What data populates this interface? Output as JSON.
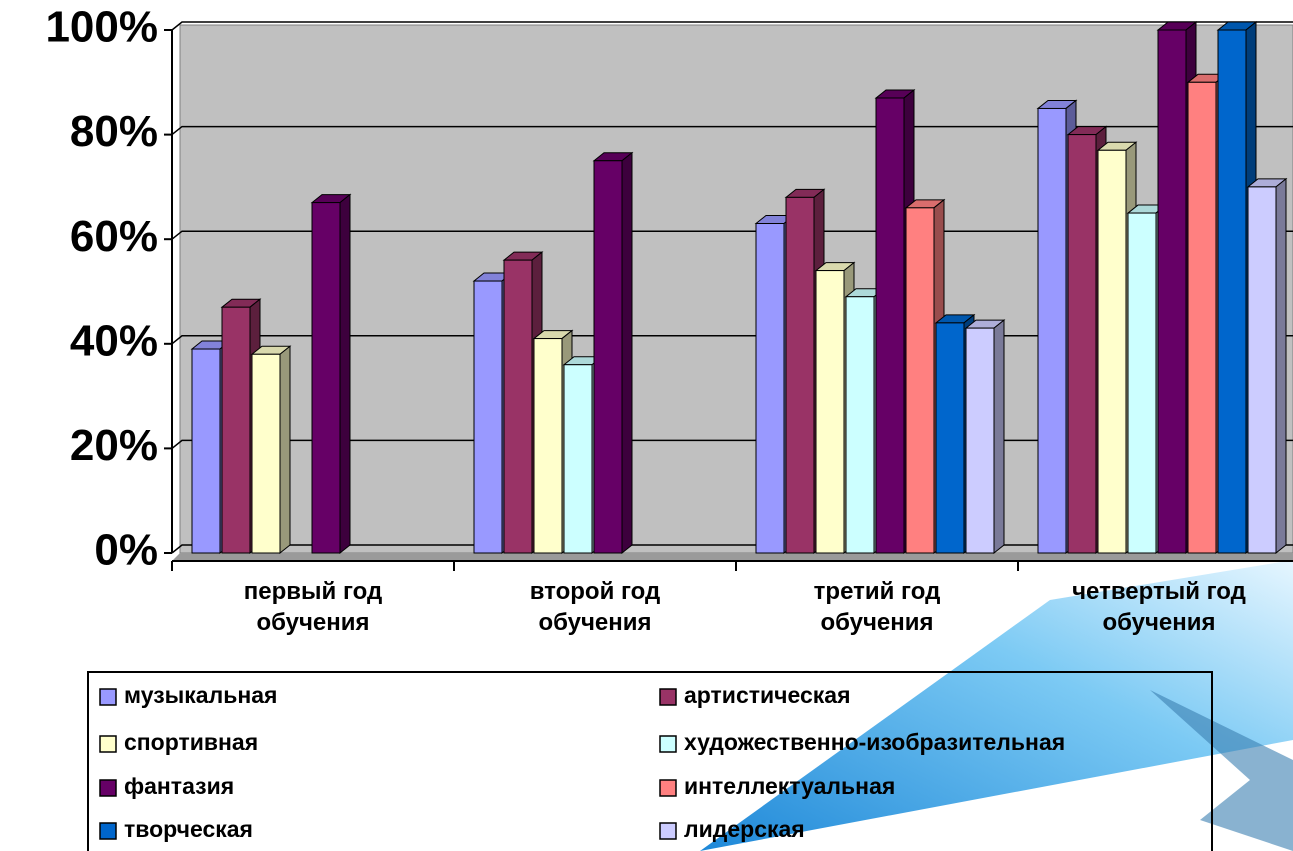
{
  "chart_data": {
    "type": "bar",
    "categories": [
      "первый год обучения",
      "второй год обучения",
      "третий год обучения",
      "четвертый год обучения"
    ],
    "series": [
      {
        "name": "музыкальная",
        "color": "#9999ff",
        "values": [
          39,
          52,
          63,
          85
        ]
      },
      {
        "name": "артистическая",
        "color": "#993366",
        "values": [
          47,
          56,
          68,
          80
        ]
      },
      {
        "name": "спортивная",
        "color": "#ffffcc",
        "values": [
          38,
          41,
          54,
          77
        ]
      },
      {
        "name": "художественно-изобразительная",
        "color": "#ccffff",
        "values": [
          null,
          36,
          49,
          65
        ]
      },
      {
        "name": "фантазия",
        "color": "#660066",
        "values": [
          67,
          75,
          87,
          100
        ]
      },
      {
        "name": "интеллектуальная",
        "color": "#ff8080",
        "values": [
          null,
          null,
          66,
          90
        ]
      },
      {
        "name": "творческая",
        "color": "#0066cc",
        "values": [
          null,
          null,
          44,
          100
        ]
      },
      {
        "name": "лидерская",
        "color": "#ccccff",
        "values": [
          null,
          null,
          43,
          70
        ]
      }
    ],
    "ylim": [
      0,
      100
    ],
    "yticks": [
      {
        "value": 0,
        "label": "0%"
      },
      {
        "value": 20,
        "label": "20%"
      },
      {
        "value": 40,
        "label": "40%"
      },
      {
        "value": 60,
        "label": "60%"
      },
      {
        "value": 80,
        "label": "80%"
      },
      {
        "value": 100,
        "label": "100%"
      }
    ],
    "grid": true,
    "legend": "bottom"
  }
}
